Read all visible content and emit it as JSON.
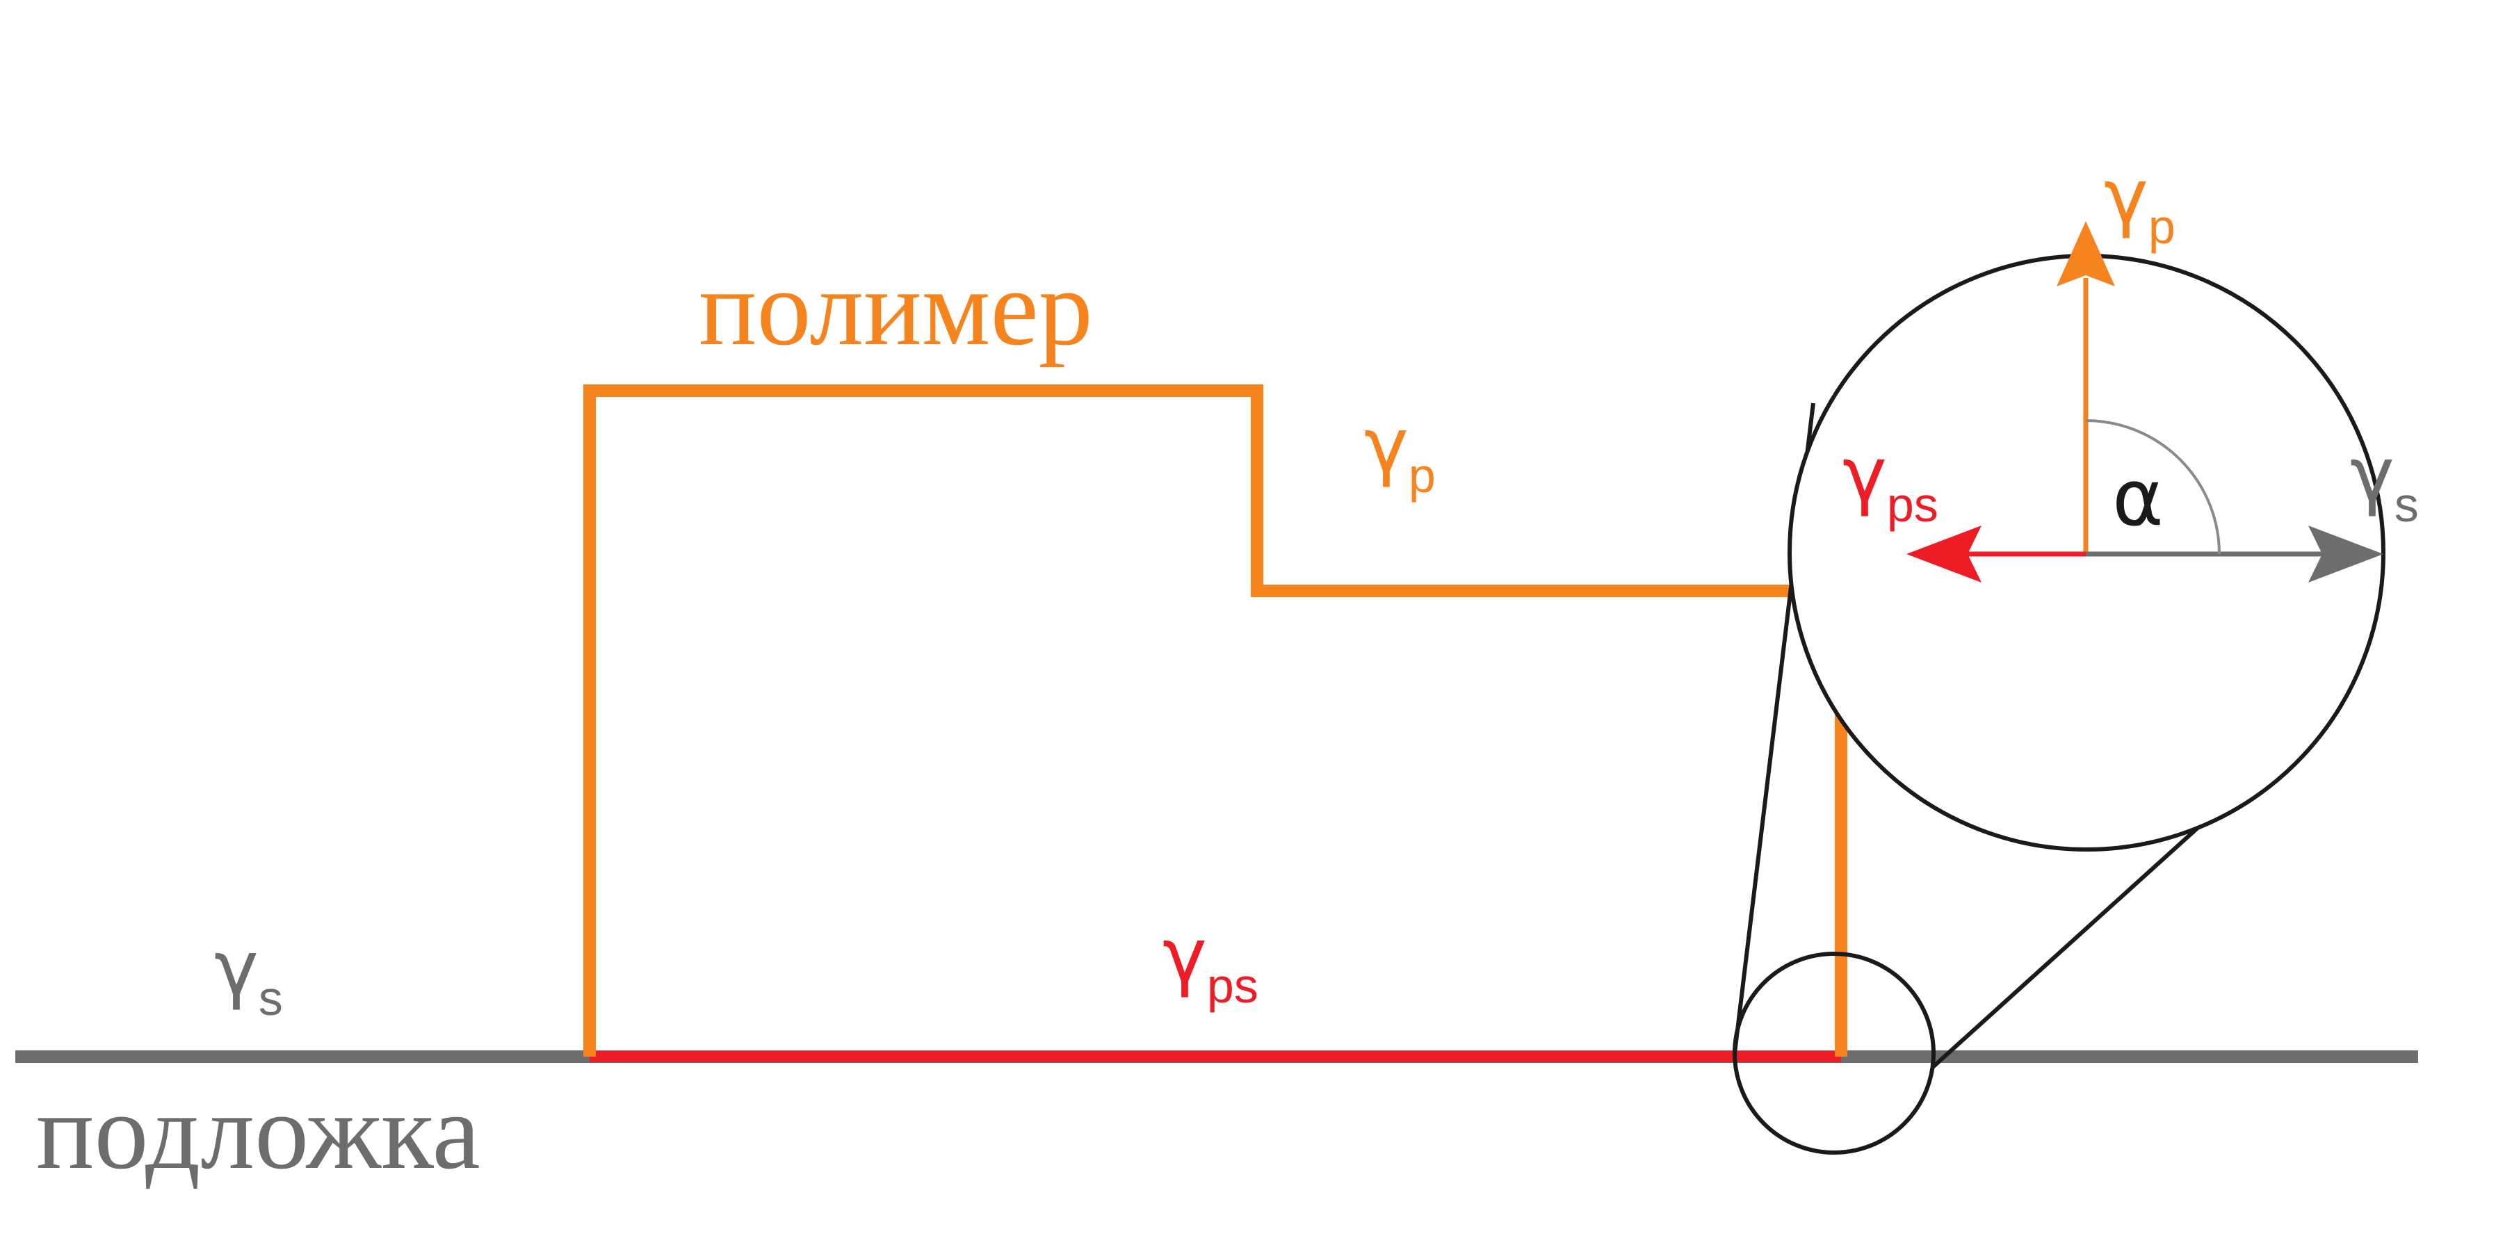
{
  "colors": {
    "polymer": "#f5841f",
    "interface": "#ee1c25",
    "substrate": "#6d6d6f",
    "outline": "#1a1a1a",
    "background": "#ffffff"
  },
  "labels": {
    "polymer_title": "полимер",
    "substrate_title": "подложка",
    "gamma_symbol": "γ",
    "alpha_symbol": "α",
    "sub_p": "p",
    "sub_s": "s",
    "sub_ps": "ps"
  }
}
